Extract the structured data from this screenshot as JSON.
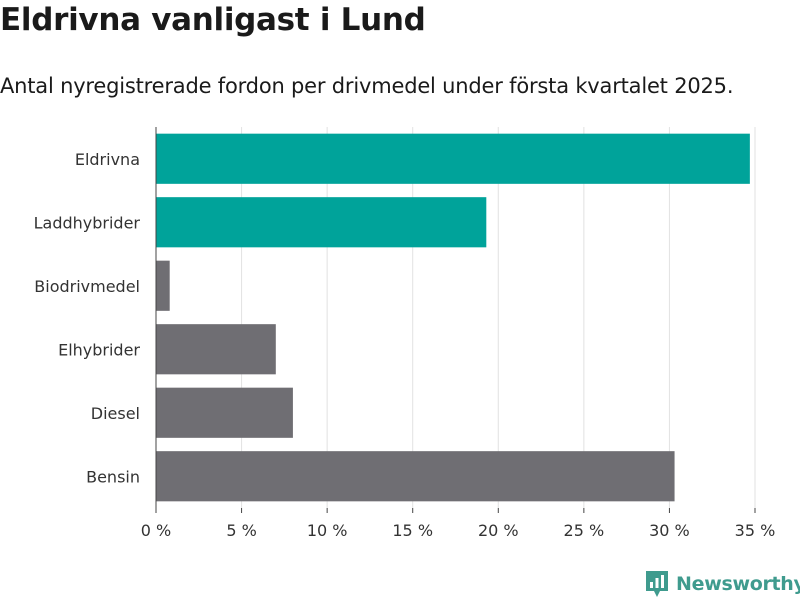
{
  "title": "Eldrivna vanligast i Lund",
  "subtitle": "Antal nyregistrerade fordon per drivmedel under första kvartalet 2025.",
  "brand": {
    "name": "Newsworthy",
    "icon": "newsworthy-logo-icon",
    "color": "#3f9b8e"
  },
  "chart_data": {
    "type": "bar",
    "orientation": "horizontal",
    "categories": [
      "Eldrivna",
      "Laddhybrider",
      "Biodrivmedel",
      "Elhybrider",
      "Diesel",
      "Bensin"
    ],
    "values": [
      34.7,
      19.3,
      0.8,
      7.0,
      8.0,
      30.3
    ],
    "colors": [
      "#00a39a",
      "#00a39a",
      "#6f6e73",
      "#6f6e73",
      "#6f6e73",
      "#6f6e73"
    ],
    "xlim": [
      0,
      35
    ],
    "xticks": [
      0,
      5,
      10,
      15,
      20,
      25,
      30,
      35
    ],
    "xtick_labels": [
      "0 %",
      "5 %",
      "10 %",
      "15 %",
      "20 %",
      "25 %",
      "30 %",
      "35 %"
    ],
    "grid": "vertical",
    "xlabel": "",
    "ylabel": ""
  }
}
